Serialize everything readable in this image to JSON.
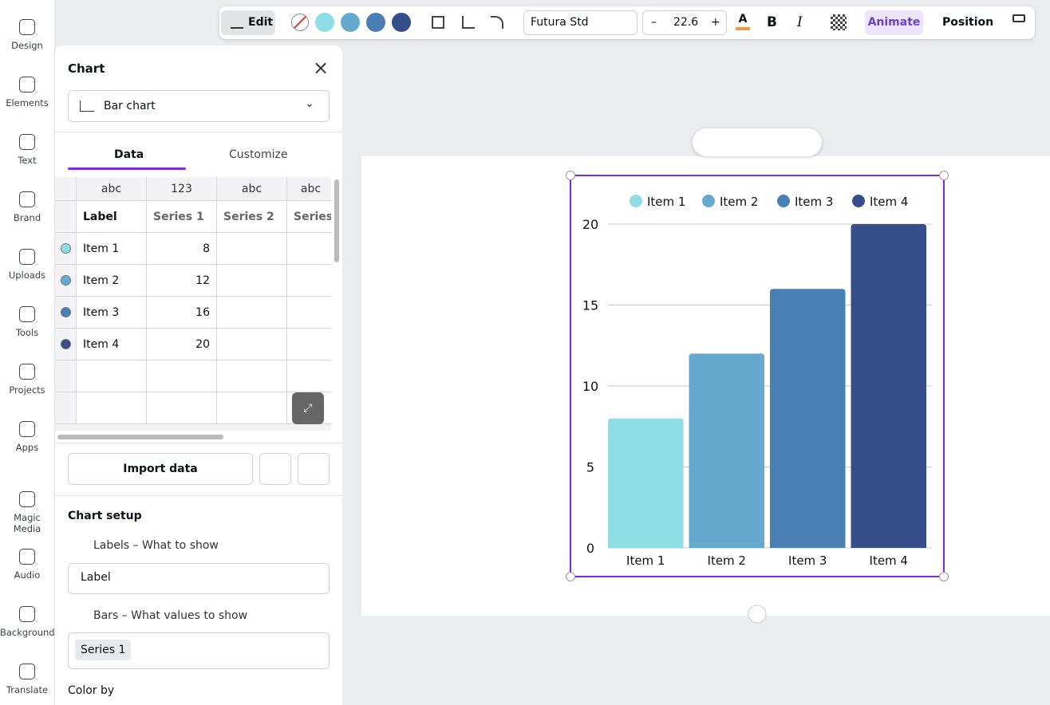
{
  "sidebar": [
    "Design",
    "Elements",
    "Text",
    "Brand",
    "Uploads",
    "Tools",
    "Projects",
    "Apps",
    "Magic Media",
    "Audio",
    "Background",
    "Translate"
  ],
  "toolbar": {
    "edit": "Edit",
    "font": "Futura Std",
    "minus": "–",
    "font_size": 22.6,
    "plus": "+",
    "bold": "B",
    "italic": "I",
    "animate": "Animate",
    "position": "Position"
  },
  "panel": {
    "title": "Chart",
    "chart_type": "Bar chart",
    "tabs": [
      "Data",
      "Customize"
    ],
    "table": {
      "types": [
        "abc",
        "123",
        "abc",
        "abc"
      ],
      "headers": [
        "Label",
        "Series 1",
        "Series 2",
        "Series"
      ]
    },
    "import": "Import data",
    "setup_title": "Chart setup",
    "labels_heading": "Labels – What to show",
    "labels_value": "Label",
    "bars_heading": "Bars – What values to show",
    "bars_value": "Series 1",
    "color_by": "Color by"
  },
  "chart_data": {
    "type": "bar",
    "categories": [
      "Item 1",
      "Item 2",
      "Item 3",
      "Item 4"
    ],
    "values": [
      8,
      12,
      16,
      20
    ],
    "colors": [
      "#8fdde5",
      "#66a9cf",
      "#4a7fb5",
      "#364f8a"
    ],
    "ylim": [
      0,
      20
    ],
    "yticks": [
      0,
      5,
      10,
      15,
      20
    ],
    "grid": true,
    "legend": "top"
  }
}
